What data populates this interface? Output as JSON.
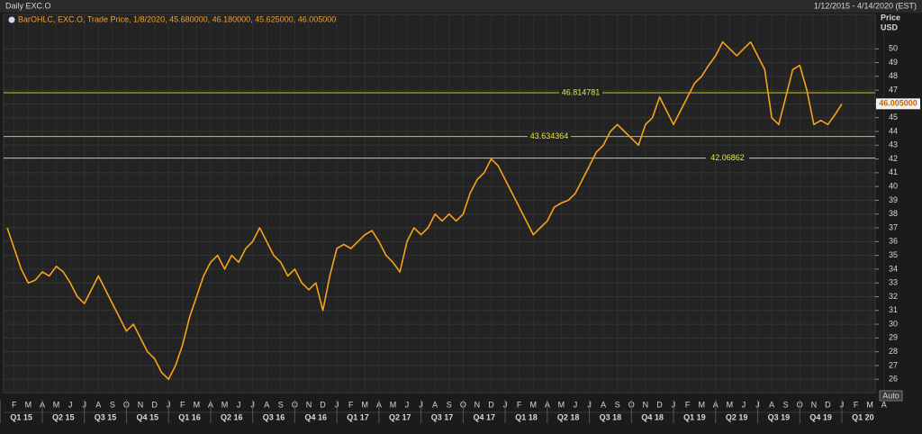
{
  "header": {
    "title": "Daily EXC.O",
    "range": "1/12/2015 - 4/14/2020 (EST)",
    "legend": "BarOHLC, EXC.O, Trade Price, 1/8/2020, 45.680000, 46.180000, 45.625000, 46.005000",
    "axis_title": "Price",
    "axis_unit": "USD",
    "auto_button": "Auto"
  },
  "chart_data": {
    "type": "line",
    "color": "#f7a21b",
    "categories": [
      null,
      "F",
      null,
      "M",
      null,
      "A",
      null,
      "M",
      null,
      "J",
      null,
      "J",
      null,
      "A",
      null,
      "S",
      null,
      "O",
      null,
      "N",
      null,
      "D",
      null,
      "J",
      null,
      "F",
      null,
      "M",
      null,
      "A",
      null,
      "M",
      null,
      "J",
      null,
      "J",
      null,
      "A",
      null,
      "S",
      null,
      "O",
      null,
      "N",
      null,
      "D",
      null,
      "J",
      null,
      "F",
      null,
      "M",
      null,
      "A",
      null,
      "M",
      null,
      "J",
      null,
      "J",
      null,
      "A",
      null,
      "S",
      null,
      "O",
      null,
      "N",
      null,
      "D",
      null,
      "J",
      null,
      "F",
      null,
      "M",
      null,
      "A",
      null,
      "M",
      null,
      "J",
      null,
      "J",
      null,
      "A",
      null,
      "S",
      null,
      "O",
      null,
      "N",
      null,
      "D",
      null,
      "J",
      null,
      "F",
      null,
      "M",
      null,
      "A",
      null,
      "M",
      null,
      "J",
      null,
      "J",
      null,
      "A",
      null,
      "S",
      null,
      "O",
      null,
      "N",
      null,
      "D",
      null,
      "J",
      null,
      "F",
      null,
      "M",
      null,
      "A",
      null
    ],
    "quarters": [
      "Q1 15",
      "Q2 15",
      "Q3 15",
      "Q4 15",
      "Q1 16",
      "Q2 16",
      "Q3 16",
      "Q4 16",
      "Q1 17",
      "Q2 17",
      "Q3 17",
      "Q4 17",
      "Q1 18",
      "Q2 18",
      "Q3 18",
      "Q4 18",
      "Q1 19",
      "Q2 19",
      "Q3 19",
      "Q4 19",
      "Q1 20"
    ],
    "values": [
      37.0,
      35.5,
      34.0,
      33.0,
      33.2,
      33.8,
      33.5,
      34.2,
      33.8,
      33.0,
      32.0,
      31.5,
      32.5,
      33.5,
      32.5,
      31.5,
      30.5,
      29.5,
      30.0,
      29.0,
      28.0,
      27.5,
      26.5,
      26.0,
      27.0,
      28.5,
      30.5,
      32.0,
      33.5,
      34.5,
      35.0,
      34.0,
      35.0,
      34.5,
      35.5,
      36.0,
      37.0,
      36.0,
      35.0,
      34.5,
      33.5,
      34.0,
      33.0,
      32.5,
      33.0,
      31.0,
      33.5,
      35.5,
      35.8,
      35.5,
      36.0,
      36.5,
      36.8,
      36.0,
      35.0,
      34.5,
      33.8,
      36.0,
      37.0,
      36.5,
      37.0,
      38.0,
      37.5,
      38.0,
      37.5,
      38.0,
      39.5,
      40.5,
      41.0,
      42.0,
      41.5,
      40.5,
      39.5,
      38.5,
      37.5,
      36.5,
      37.0,
      37.5,
      38.5,
      38.8,
      39.0,
      39.5,
      40.5,
      41.5,
      42.5,
      43.0,
      44.0,
      44.5,
      44.0,
      43.5,
      43.0,
      44.5,
      45.0,
      46.5,
      45.5,
      44.5,
      45.5,
      46.5,
      47.5,
      48.0,
      48.8,
      49.5,
      50.5,
      50.0,
      49.5,
      50.0,
      50.5,
      49.5,
      48.5,
      45.0,
      44.5,
      46.5,
      48.5,
      48.8,
      47.0,
      44.5,
      44.8,
      44.5,
      45.2,
      46.0,
      null,
      null,
      null,
      null,
      null,
      null,
      null
    ],
    "levels": [
      46.814781,
      43.634364,
      42.06862
    ],
    "last_value": 46.005,
    "last_value_label": "46.005000",
    "ylim": [
      25.1,
      52.5
    ],
    "yticks": [
      26,
      27,
      28,
      29,
      30,
      31,
      32,
      33,
      34,
      35,
      36,
      37,
      38,
      39,
      40,
      41,
      42,
      43,
      44,
      45,
      46,
      47,
      48,
      49,
      50
    ],
    "grid": true
  }
}
